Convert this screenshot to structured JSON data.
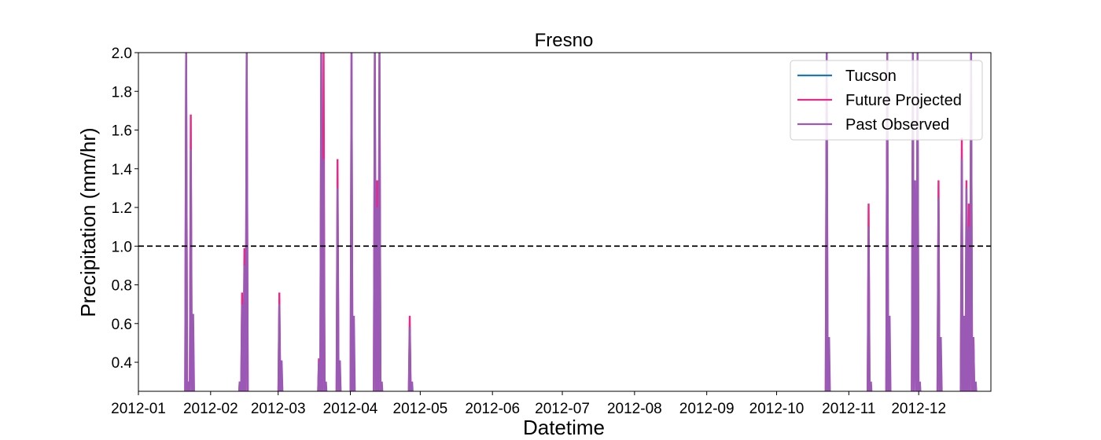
{
  "chart_data": {
    "type": "line",
    "title": "Fresno",
    "xlabel": "Datetime",
    "ylabel": "Precipitation (mm/hr)",
    "ylim": [
      0.25,
      2.0
    ],
    "xlim": [
      "2012-01-01",
      "2012-12-31"
    ],
    "grid": false,
    "legend_position": "top-right",
    "x_ticks": [
      "2012-01",
      "2012-02",
      "2012-03",
      "2012-04",
      "2012-05",
      "2012-06",
      "2012-07",
      "2012-08",
      "2012-09",
      "2012-10",
      "2012-11",
      "2012-12"
    ],
    "y_ticks": [
      "0.4",
      "0.6",
      "0.8",
      "1.0",
      "1.2",
      "1.4",
      "1.6",
      "1.8",
      "2.0"
    ],
    "threshold": {
      "value": 1.0,
      "style": "dashed",
      "color": "#000000"
    },
    "series": [
      {
        "name": "Tucson",
        "color": "#1f77b4",
        "points": []
      },
      {
        "name": "Future Projected",
        "color": "#e7298a",
        "points": [
          [
            "2012-01-21",
            2.0
          ],
          [
            "2012-01-22",
            0.3
          ],
          [
            "2012-01-23",
            1.68
          ],
          [
            "2012-02-13",
            0.3
          ],
          [
            "2012-02-14",
            0.76
          ],
          [
            "2012-02-15",
            0.99
          ],
          [
            "2012-02-16",
            2.0
          ],
          [
            "2012-03-01",
            0.76
          ],
          [
            "2012-03-18",
            0.42
          ],
          [
            "2012-03-19",
            2.0
          ],
          [
            "2012-03-20",
            2.0
          ],
          [
            "2012-03-26",
            1.45
          ],
          [
            "2012-04-01",
            2.0
          ],
          [
            "2012-04-11",
            2.0
          ],
          [
            "2012-04-12",
            1.34
          ],
          [
            "2012-04-13",
            2.0
          ],
          [
            "2012-04-26",
            0.64
          ],
          [
            "2012-10-22",
            2.0
          ],
          [
            "2012-11-09",
            1.22
          ],
          [
            "2012-11-17",
            2.0
          ],
          [
            "2012-11-28",
            2.0
          ],
          [
            "2012-11-30",
            2.0
          ],
          [
            "2012-12-09",
            1.34
          ],
          [
            "2012-12-19",
            1.56
          ],
          [
            "2012-12-21",
            1.34
          ],
          [
            "2012-12-22",
            1.22
          ],
          [
            "2012-12-23",
            2.0
          ],
          [
            "2012-12-24",
            0.53
          ]
        ]
      },
      {
        "name": "Past Observed",
        "color": "#9b59b6",
        "points": [
          [
            "2012-01-21",
            2.0
          ],
          [
            "2012-01-22",
            0.3
          ],
          [
            "2012-01-23",
            1.5
          ],
          [
            "2012-01-24",
            0.65
          ],
          [
            "2012-02-13",
            0.3
          ],
          [
            "2012-02-14",
            0.7
          ],
          [
            "2012-02-15",
            0.9
          ],
          [
            "2012-02-16",
            2.0
          ],
          [
            "2012-03-01",
            0.7
          ],
          [
            "2012-03-02",
            0.41
          ],
          [
            "2012-03-18",
            0.41
          ],
          [
            "2012-03-19",
            2.0
          ],
          [
            "2012-03-20",
            1.45
          ],
          [
            "2012-03-21",
            0.3
          ],
          [
            "2012-03-26",
            1.3
          ],
          [
            "2012-03-27",
            0.41
          ],
          [
            "2012-04-01",
            2.0
          ],
          [
            "2012-04-02",
            0.64
          ],
          [
            "2012-04-11",
            2.0
          ],
          [
            "2012-04-12",
            1.2
          ],
          [
            "2012-04-13",
            2.0
          ],
          [
            "2012-04-14",
            0.3
          ],
          [
            "2012-04-26",
            0.58
          ],
          [
            "2012-04-27",
            0.3
          ],
          [
            "2012-10-22",
            2.0
          ],
          [
            "2012-10-23",
            0.53
          ],
          [
            "2012-11-09",
            1.1
          ],
          [
            "2012-11-10",
            0.3
          ],
          [
            "2012-11-17",
            2.0
          ],
          [
            "2012-11-18",
            0.64
          ],
          [
            "2012-11-28",
            2.0
          ],
          [
            "2012-11-29",
            1.34
          ],
          [
            "2012-11-30",
            2.0
          ],
          [
            "2012-12-01",
            0.3
          ],
          [
            "2012-12-09",
            1.25
          ],
          [
            "2012-12-10",
            0.53
          ],
          [
            "2012-12-19",
            1.45
          ],
          [
            "2012-12-20",
            0.64
          ],
          [
            "2012-12-21",
            1.3
          ],
          [
            "2012-12-22",
            1.1
          ],
          [
            "2012-12-23",
            2.0
          ],
          [
            "2012-12-24",
            0.53
          ],
          [
            "2012-12-25",
            0.3
          ]
        ]
      }
    ]
  }
}
